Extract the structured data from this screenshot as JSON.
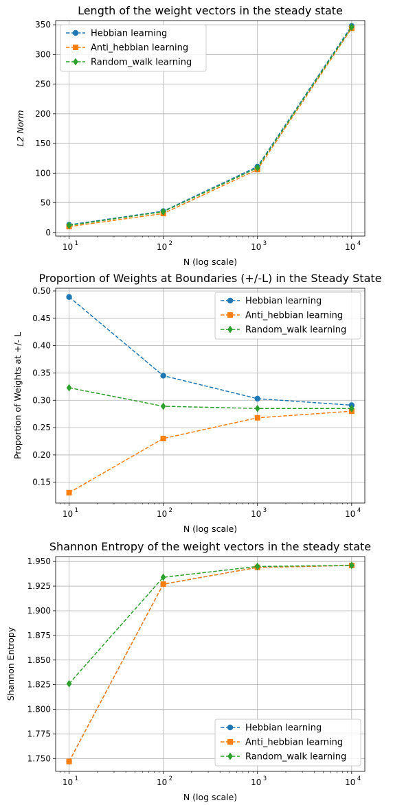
{
  "chart_data": [
    {
      "type": "line",
      "title": "Length of the weight vectors in the steady state",
      "xlabel": "N (log scale)",
      "ylabel": "L2 Norm",
      "xscale": "log",
      "x": [
        10,
        100,
        1000,
        10000
      ],
      "xticks": [
        "10",
        "10",
        "10",
        "10"
      ],
      "xtick_exponents": [
        "1",
        "2",
        "3",
        "4"
      ],
      "ylim": [
        -6,
        357
      ],
      "yticks": [
        0,
        50,
        100,
        150,
        200,
        250,
        300,
        350
      ],
      "ytick_labels": [
        "0",
        "50",
        "100",
        "150",
        "200",
        "250",
        "300",
        "350"
      ],
      "grid": true,
      "legend_position": "upper-left",
      "series": [
        {
          "name": "Hebbian learning",
          "values": [
            13,
            36,
            111,
            348
          ],
          "color": "#1f77b4",
          "marker": "circle"
        },
        {
          "name": "Anti_hebbian learning",
          "values": [
            10,
            32,
            106,
            344
          ],
          "color": "#ff7f0e",
          "marker": "square"
        },
        {
          "name": "Random_walk learning",
          "values": [
            12,
            35,
            109,
            346
          ],
          "color": "#2ca02c",
          "marker": "diamond"
        }
      ]
    },
    {
      "type": "line",
      "title": "Proportion of Weights at Boundaries (+/-L) in the Steady State",
      "xlabel": "N (log scale)",
      "ylabel": "Proportion of Weights at +/- L",
      "xscale": "log",
      "x": [
        10,
        100,
        1000,
        10000
      ],
      "xticks": [
        "10",
        "10",
        "10",
        "10"
      ],
      "xtick_exponents": [
        "1",
        "2",
        "3",
        "4"
      ],
      "ylim": [
        0.112,
        0.505
      ],
      "yticks": [
        0.15,
        0.2,
        0.25,
        0.3,
        0.35,
        0.4,
        0.45,
        0.5
      ],
      "ytick_labels": [
        "0.15",
        "0.20",
        "0.25",
        "0.30",
        "0.35",
        "0.40",
        "0.45",
        "0.50"
      ],
      "grid": true,
      "legend_position": "upper-right",
      "series": [
        {
          "name": "Hebbian learning",
          "values": [
            0.489,
            0.345,
            0.303,
            0.291
          ],
          "color": "#1f77b4",
          "marker": "circle"
        },
        {
          "name": "Anti_hebbian learning",
          "values": [
            0.131,
            0.23,
            0.268,
            0.28
          ],
          "color": "#ff7f0e",
          "marker": "square"
        },
        {
          "name": "Random_walk learning",
          "values": [
            0.323,
            0.289,
            0.285,
            0.285
          ],
          "color": "#2ca02c",
          "marker": "diamond"
        }
      ]
    },
    {
      "type": "line",
      "title": "Shannon Entropy of the weight vectors in the steady state",
      "xlabel": "N (log scale)",
      "ylabel": "Shannon Entropy",
      "xscale": "log",
      "x": [
        10,
        100,
        1000,
        10000
      ],
      "xticks": [
        "10",
        "10",
        "10",
        "10"
      ],
      "xtick_exponents": [
        "1",
        "2",
        "3",
        "4"
      ],
      "ylim": [
        1.737,
        1.955
      ],
      "yticks": [
        1.75,
        1.775,
        1.8,
        1.825,
        1.85,
        1.875,
        1.9,
        1.925,
        1.95
      ],
      "ytick_labels": [
        "1.750",
        "1.775",
        "1.800",
        "1.825",
        "1.850",
        "1.875",
        "1.900",
        "1.925",
        "1.950"
      ],
      "grid": true,
      "legend_position": "lower-right",
      "series": [
        {
          "name": "Hebbian learning",
          "values": [
            1.747,
            1.927,
            1.944,
            1.946
          ],
          "color": "#1f77b4",
          "marker": "circle"
        },
        {
          "name": "Anti_hebbian learning",
          "values": [
            1.747,
            1.927,
            1.944,
            1.946
          ],
          "color": "#ff7f0e",
          "marker": "square"
        },
        {
          "name": "Random_walk learning",
          "values": [
            1.826,
            1.934,
            1.945,
            1.946
          ],
          "color": "#2ca02c",
          "marker": "diamond"
        }
      ]
    }
  ]
}
